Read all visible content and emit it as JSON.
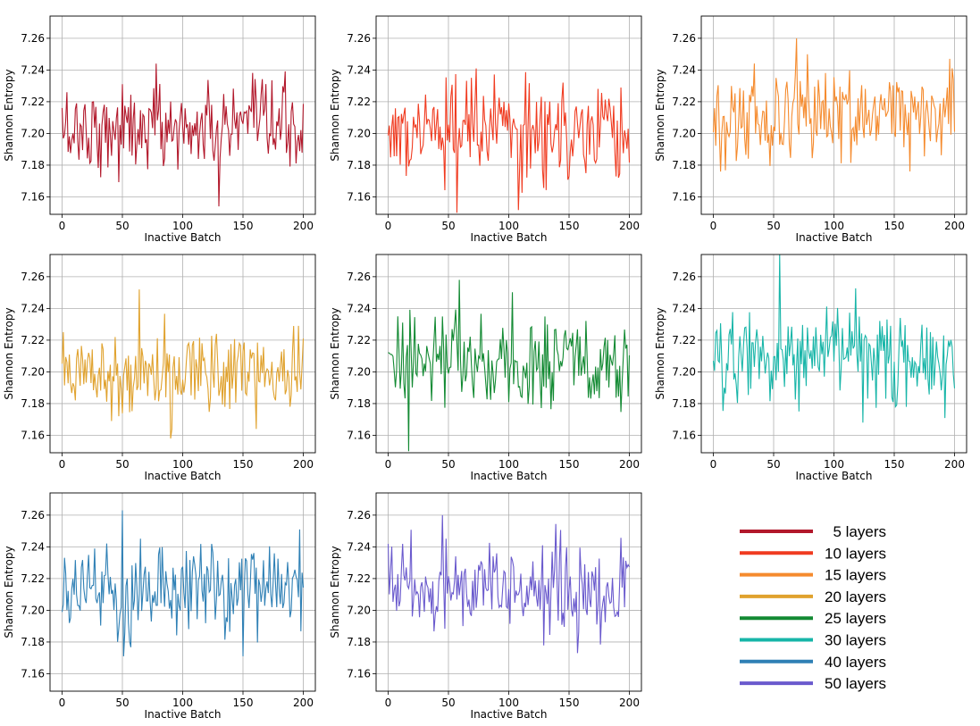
{
  "chart_data": {
    "type": "line",
    "layout": "3x3 grid of subplots (8 panels) with a legend in the bottom-right cell",
    "grid": true,
    "legend": {
      "placement": "bottom-right cell",
      "entries": [
        "5 layers",
        "10 layers",
        "15 layers",
        "20 layers",
        "25 layers",
        "30 layers",
        "40 layers",
        "50 layers"
      ]
    },
    "colors": [
      "#b2182b",
      "#f03b20",
      "#f58b2e",
      "#e0a22e",
      "#138a33",
      "#17b5a8",
      "#2f80b5",
      "#6a5acd"
    ],
    "xlabel": "Inactive Batch",
    "ylabel": "Shannon Entropy",
    "xlim": [
      -10,
      210
    ],
    "ylim": [
      7.149,
      7.274
    ],
    "xticks": [
      "0",
      "50",
      "100",
      "150",
      "200"
    ],
    "yticks": [
      "7.16",
      "7.18",
      "7.20",
      "7.22",
      "7.24",
      "7.26"
    ],
    "x": [
      0,
      200
    ],
    "panels": [
      {
        "series": "5 layers",
        "color": "#b2182b",
        "mean": 7.203,
        "std": 0.0135,
        "min": 7.154,
        "max": 7.244
      },
      {
        "series": "10 layers",
        "color": "#f03b20",
        "mean": 7.2,
        "std": 0.0155,
        "min": 7.15,
        "max": 7.241
      },
      {
        "series": "15 layers",
        "color": "#f58b2e",
        "mean": 7.211,
        "std": 0.0145,
        "min": 7.176,
        "max": 7.26
      },
      {
        "series": "20 layers",
        "color": "#e0a22e",
        "mean": 7.201,
        "std": 0.014,
        "min": 7.158,
        "max": 7.252
      },
      {
        "series": "25 layers",
        "color": "#138a33",
        "mean": 7.207,
        "std": 0.015,
        "min": 7.15,
        "max": 7.258
      },
      {
        "series": "30 layers",
        "color": "#17b5a8",
        "mean": 7.21,
        "std": 0.015,
        "min": 7.168,
        "max": 7.274
      },
      {
        "series": "40 layers",
        "color": "#2f80b5",
        "mean": 7.214,
        "std": 0.014,
        "min": 7.171,
        "max": 7.263
      },
      {
        "series": "50 layers",
        "color": "#6a5acd",
        "mean": 7.213,
        "std": 0.014,
        "min": 7.173,
        "max": 7.26
      }
    ]
  }
}
